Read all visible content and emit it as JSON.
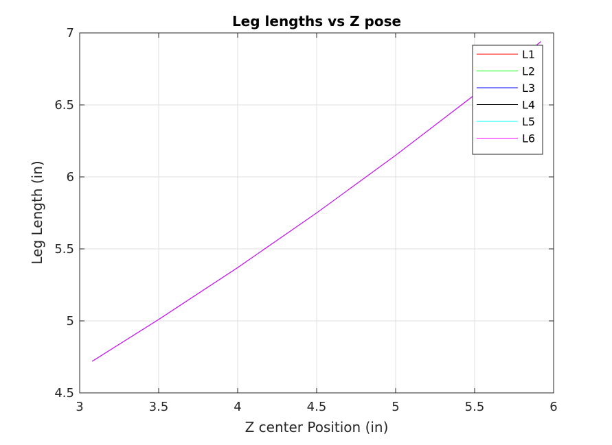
{
  "chart_data": {
    "type": "line",
    "title": "Leg lengths vs Z pose",
    "xlabel": "Z center Position (in)",
    "ylabel": "Leg Length (in)",
    "xlim": [
      3,
      6
    ],
    "ylim": [
      4.5,
      7
    ],
    "xticks": [
      "3",
      "3.5",
      "4",
      "4.5",
      "5",
      "5.5",
      "6"
    ],
    "yticks": [
      "4.5",
      "5",
      "5.5",
      "6",
      "6.5",
      "7"
    ],
    "grid": true,
    "legend_position": "top-right",
    "x": [
      3.08,
      3.5,
      4.0,
      4.5,
      5.0,
      5.5,
      5.92
    ],
    "series": [
      {
        "name": "L1",
        "color": "#ff0000",
        "values": [
          4.72,
          5.01,
          5.37,
          5.75,
          6.15,
          6.57,
          6.94
        ]
      },
      {
        "name": "L2",
        "color": "#00ff00",
        "values": [
          4.72,
          5.01,
          5.37,
          5.75,
          6.15,
          6.57,
          6.94
        ]
      },
      {
        "name": "L3",
        "color": "#0000ff",
        "values": [
          4.72,
          5.01,
          5.37,
          5.75,
          6.15,
          6.57,
          6.94
        ]
      },
      {
        "name": "L4",
        "color": "#000000",
        "values": [
          4.72,
          5.01,
          5.37,
          5.75,
          6.15,
          6.57,
          6.94
        ]
      },
      {
        "name": "L5",
        "color": "#00ffff",
        "values": [
          4.72,
          5.01,
          5.37,
          5.75,
          6.15,
          6.57,
          6.94
        ]
      },
      {
        "name": "L6",
        "color": "#ff00ff",
        "values": [
          4.72,
          5.01,
          5.37,
          5.75,
          6.15,
          6.57,
          6.94
        ]
      }
    ]
  }
}
